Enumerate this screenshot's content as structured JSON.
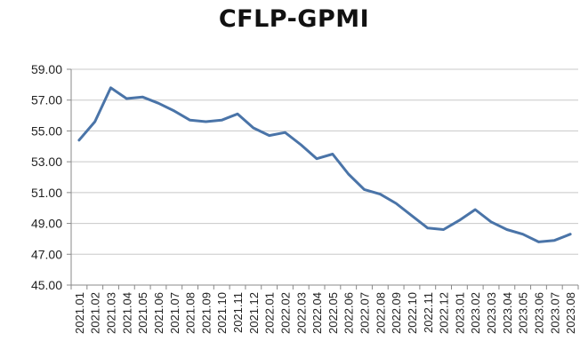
{
  "chart_data": {
    "type": "line",
    "title": "CFLP-GPMI",
    "xlabel": "",
    "ylabel": "",
    "ylim": [
      45.0,
      59.0
    ],
    "yticks": [
      "45.00",
      "47.00",
      "49.00",
      "51.00",
      "53.00",
      "55.00",
      "57.00",
      "59.00"
    ],
    "grid": "horizontal",
    "line_color": "#4A74A8",
    "x": [
      "2021.01",
      "2021.02",
      "2021.03",
      "2021.04",
      "2021.05",
      "2021.06",
      "2021.07",
      "2021.08",
      "2021.09",
      "2021.10",
      "2021.11",
      "2021.12",
      "2022.01",
      "2022.02",
      "2022.03",
      "2022.04",
      "2022.05",
      "2022.06",
      "2022.07",
      "2022.08",
      "2022.09",
      "2022.10",
      "2022.11",
      "2022.12",
      "2023.01",
      "2023.02",
      "2023.03",
      "2023.04",
      "2023.05",
      "2023.06",
      "2023.07",
      "2023.08"
    ],
    "series": [
      {
        "values": [
          54.4,
          55.6,
          57.8,
          57.1,
          57.2,
          56.8,
          56.3,
          55.7,
          55.6,
          55.7,
          56.1,
          55.2,
          54.7,
          54.9,
          54.1,
          53.2,
          53.5,
          52.2,
          51.2,
          50.9,
          50.3,
          49.5,
          48.7,
          48.6,
          49.2,
          49.9,
          49.1,
          48.6,
          48.3,
          47.8,
          47.9,
          48.3
        ]
      }
    ]
  }
}
